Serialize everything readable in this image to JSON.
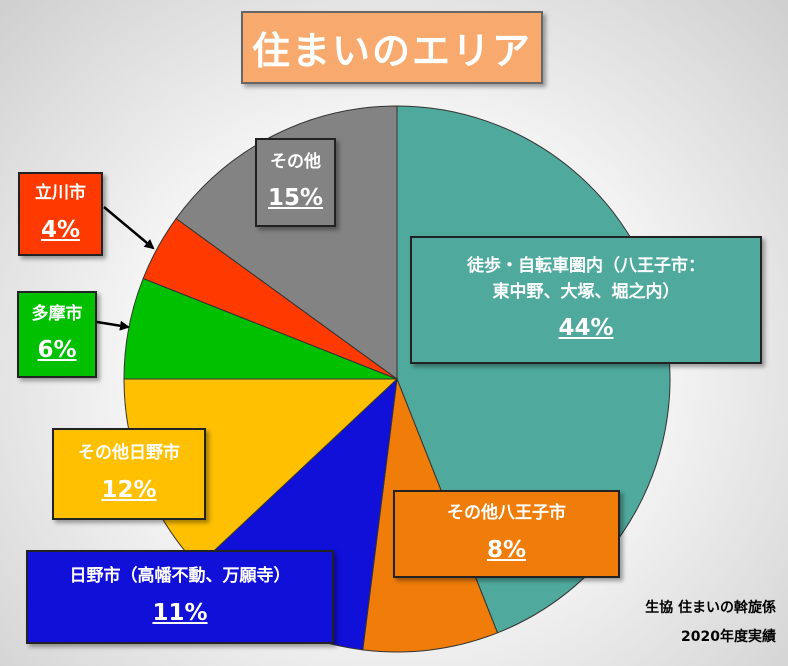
{
  "title": "住まいのエリア",
  "footer": {
    "line1": "生協 住まいの斡旋係",
    "line2": "2020年度実績"
  },
  "colors": {
    "teal": "#4fa99d",
    "orange": "#f07d0a",
    "blue": "#1010d8",
    "yellow": "#fec000",
    "green": "#00c000",
    "red": "#ff3a00",
    "gray": "#838383"
  },
  "chart_data": {
    "type": "pie",
    "title": "住まいのエリア",
    "start_angle_deg": 0,
    "direction": "clockwise",
    "slices": [
      {
        "label_line1": "徒歩・自転車圏内（八王子市：",
        "label_line2": "東中野、大塚、堀之内）",
        "value": 44,
        "display": "44%",
        "color": "#4fa99d"
      },
      {
        "label_line1": "その他八王子市",
        "value": 8,
        "display": "8%",
        "color": "#f07d0a"
      },
      {
        "label_line1": "日野市（高幡不動、万願寺）",
        "value": 11,
        "display": "11%",
        "color": "#1010d8"
      },
      {
        "label_line1": "その他日野市",
        "value": 12,
        "display": "12%",
        "color": "#fec000"
      },
      {
        "label_line1": "多摩市",
        "value": 6,
        "display": "6%",
        "color": "#00c000"
      },
      {
        "label_line1": "立川市",
        "value": 4,
        "display": "4%",
        "color": "#ff3a00"
      },
      {
        "label_line1": "その他",
        "value": 15,
        "display": "15%",
        "color": "#838383"
      }
    ]
  }
}
